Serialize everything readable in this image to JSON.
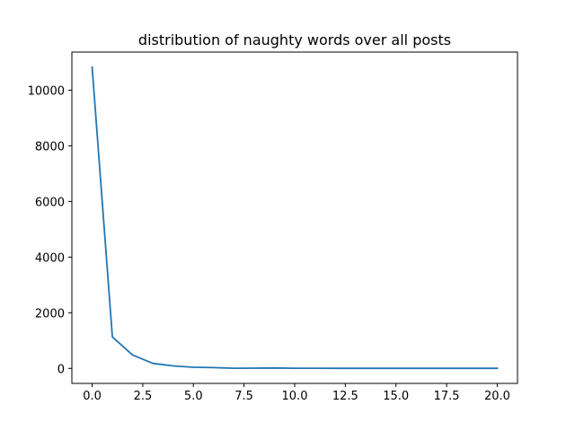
{
  "chart_data": {
    "type": "line",
    "title": "distribution of naughty words over all posts",
    "xlabel": "",
    "ylabel": "",
    "xlim": [
      -1,
      21
    ],
    "ylim": [
      -540,
      11370
    ],
    "grid": false,
    "x_ticks": [
      0,
      2.5,
      5,
      7.5,
      10,
      12.5,
      15,
      17.5,
      20
    ],
    "x_tick_labels": [
      "0.0",
      "2.5",
      "5.0",
      "7.5",
      "10.0",
      "12.5",
      "15.0",
      "17.5",
      "20.0"
    ],
    "y_ticks": [
      0,
      2000,
      4000,
      6000,
      8000,
      10000
    ],
    "y_tick_labels": [
      "0",
      "2000",
      "4000",
      "6000",
      "8000",
      "10000"
    ],
    "series": [
      {
        "color": "#1f77b4",
        "x": [
          0,
          1,
          2,
          3,
          4,
          5,
          6,
          7,
          8,
          9,
          10,
          11,
          12,
          13,
          14,
          15,
          16,
          17,
          18,
          19,
          20
        ],
        "y": [
          10830,
          1130,
          480,
          180,
          90,
          40,
          30,
          5,
          8,
          15,
          5,
          5,
          2,
          2,
          2,
          2,
          2,
          2,
          2,
          2,
          2
        ]
      }
    ]
  }
}
